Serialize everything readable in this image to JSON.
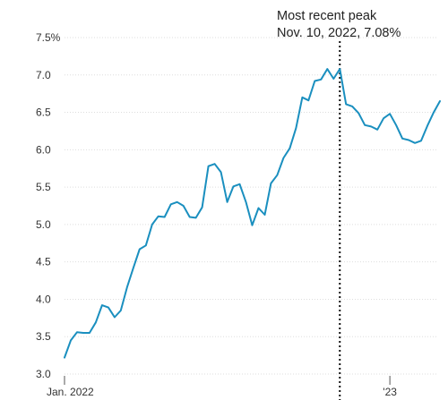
{
  "chart_data": {
    "type": "line",
    "title": "",
    "xlabel": "",
    "ylabel": "",
    "ylim": [
      3.0,
      7.5
    ],
    "y_ticks": [
      3.0,
      3.5,
      4.0,
      4.5,
      5.0,
      5.5,
      6.0,
      6.5,
      7.0,
      7.5
    ],
    "y_tick_labels": [
      "3.0",
      "3.5",
      "4.0",
      "4.5",
      "5.0",
      "5.5",
      "6.0",
      "6.5",
      "7.0",
      "7.5%"
    ],
    "x_range": [
      "2022-01-06",
      "2023-02-23"
    ],
    "x_tick_labels": [
      {
        "date": "2022-01-06",
        "label": "Jan. 2022"
      },
      {
        "date": "2023-01-05",
        "label": "'23"
      }
    ],
    "grid": true,
    "line_color": "#1a8fbf",
    "marker_color": "#111111",
    "series": [
      {
        "points": [
          [
            "2022-01-06",
            3.22
          ],
          [
            "2022-01-13",
            3.45
          ],
          [
            "2022-01-20",
            3.56
          ],
          [
            "2022-01-27",
            3.55
          ],
          [
            "2022-02-03",
            3.55
          ],
          [
            "2022-02-10",
            3.69
          ],
          [
            "2022-02-17",
            3.92
          ],
          [
            "2022-02-24",
            3.89
          ],
          [
            "2022-03-03",
            3.76
          ],
          [
            "2022-03-10",
            3.85
          ],
          [
            "2022-03-17",
            4.16
          ],
          [
            "2022-03-24",
            4.42
          ],
          [
            "2022-03-31",
            4.67
          ],
          [
            "2022-04-07",
            4.72
          ],
          [
            "2022-04-14",
            5.0
          ],
          [
            "2022-04-21",
            5.11
          ],
          [
            "2022-04-28",
            5.1
          ],
          [
            "2022-05-05",
            5.27
          ],
          [
            "2022-05-12",
            5.3
          ],
          [
            "2022-05-19",
            5.25
          ],
          [
            "2022-05-26",
            5.1
          ],
          [
            "2022-06-02",
            5.09
          ],
          [
            "2022-06-09",
            5.23
          ],
          [
            "2022-06-16",
            5.78
          ],
          [
            "2022-06-23",
            5.81
          ],
          [
            "2022-06-30",
            5.7
          ],
          [
            "2022-07-07",
            5.3
          ],
          [
            "2022-07-14",
            5.51
          ],
          [
            "2022-07-21",
            5.54
          ],
          [
            "2022-07-28",
            5.3
          ],
          [
            "2022-08-04",
            4.99
          ],
          [
            "2022-08-11",
            5.22
          ],
          [
            "2022-08-18",
            5.13
          ],
          [
            "2022-08-25",
            5.55
          ],
          [
            "2022-09-01",
            5.66
          ],
          [
            "2022-09-08",
            5.89
          ],
          [
            "2022-09-15",
            6.02
          ],
          [
            "2022-09-22",
            6.29
          ],
          [
            "2022-09-29",
            6.7
          ],
          [
            "2022-10-06",
            6.66
          ],
          [
            "2022-10-13",
            6.92
          ],
          [
            "2022-10-20",
            6.94
          ],
          [
            "2022-10-27",
            7.08
          ],
          [
            "2022-11-03",
            6.95
          ],
          [
            "2022-11-10",
            7.08
          ],
          [
            "2022-11-17",
            6.61
          ],
          [
            "2022-11-24",
            6.58
          ],
          [
            "2022-12-01",
            6.49
          ],
          [
            "2022-12-08",
            6.33
          ],
          [
            "2022-12-15",
            6.31
          ],
          [
            "2022-12-22",
            6.27
          ],
          [
            "2022-12-29",
            6.42
          ],
          [
            "2023-01-05",
            6.48
          ],
          [
            "2023-01-12",
            6.33
          ],
          [
            "2023-01-19",
            6.15
          ],
          [
            "2023-01-26",
            6.13
          ],
          [
            "2023-02-02",
            6.09
          ],
          [
            "2023-02-09",
            6.12
          ],
          [
            "2023-02-16",
            6.32
          ],
          [
            "2023-02-23",
            6.5
          ],
          [
            "2023-03-02",
            6.65
          ]
        ]
      }
    ],
    "annotations": [
      {
        "date": "2022-11-10",
        "value": 7.08,
        "line1": "Most recent peak",
        "line2": "Nov. 10, 2022, 7.08%"
      }
    ]
  }
}
